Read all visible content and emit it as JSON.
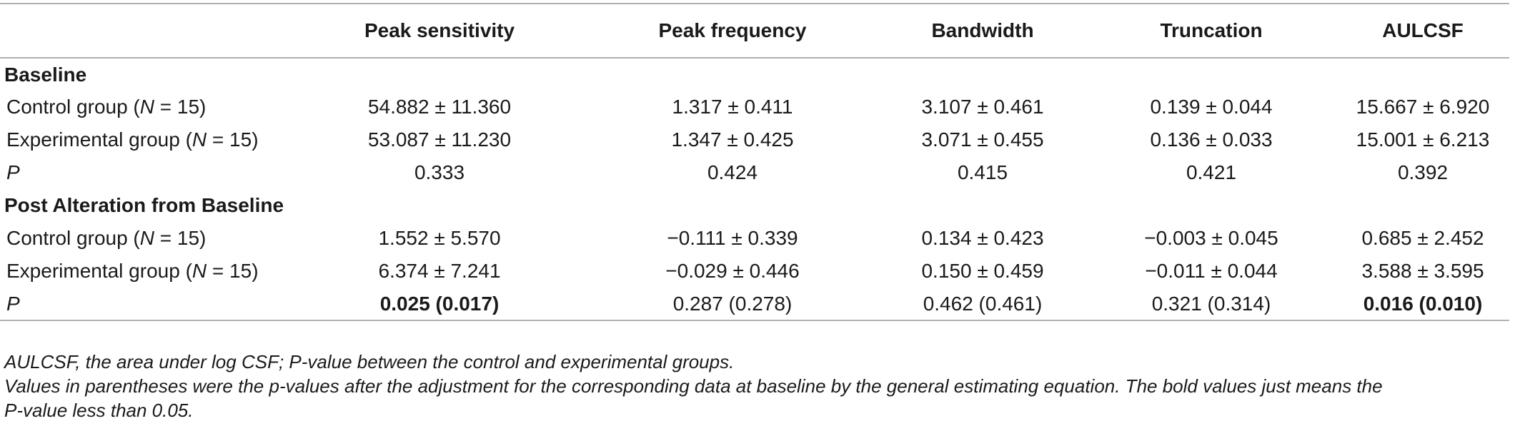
{
  "table": {
    "headers": [
      "",
      "Peak sensitivity",
      "Peak frequency",
      "Bandwidth",
      "Truncation",
      "AULCSF"
    ],
    "sections": [
      {
        "title": "Baseline",
        "rows": [
          {
            "label_pre": "Control group (",
            "label_n": "N",
            "label_post": " = 15)",
            "cells": [
              "54.882 ± 11.360",
              "1.317 ± 0.411",
              "3.107 ± 0.461",
              "0.139 ± 0.044",
              "15.667 ± 6.920"
            ]
          },
          {
            "label_pre": "Experimental group (",
            "label_n": "N",
            "label_post": " = 15)",
            "cells": [
              "53.087 ± 11.230",
              "1.347 ± 0.425",
              "3.071 ± 0.455",
              "0.136 ± 0.033",
              "15.001 ± 6.213"
            ]
          },
          {
            "label_pre": "",
            "label_n": "P",
            "label_post": "",
            "cells": [
              "0.333",
              "0.424",
              "0.415",
              "0.421",
              "0.392"
            ]
          }
        ]
      },
      {
        "title": "Post Alteration from Baseline",
        "rows": [
          {
            "label_pre": "Control group (",
            "label_n": "N",
            "label_post": " = 15)",
            "cells": [
              "1.552 ± 5.570",
              "−0.111 ± 0.339",
              "0.134 ± 0.423",
              "−0.003 ± 0.045",
              "0.685 ± 2.452"
            ]
          },
          {
            "label_pre": "Experimental group (",
            "label_n": "N",
            "label_post": " = 15)",
            "cells": [
              "6.374 ± 7.241",
              "−0.029 ± 0.446",
              "0.150 ± 0.459",
              "−0.011 ± 0.044",
              "3.588 ± 3.595"
            ]
          },
          {
            "label_pre": "",
            "label_n": "P",
            "label_post": "",
            "cells": [
              "0.025 (0.017)",
              "0.287 (0.278)",
              "0.462 (0.461)",
              "0.321 (0.314)",
              "0.016 (0.010)"
            ],
            "bold": [
              true,
              false,
              false,
              false,
              true
            ]
          }
        ]
      }
    ]
  },
  "notes": {
    "line1": "AULCSF, the area under log CSF; P-value between the control and experimental groups.",
    "line2": "Values in parentheses were the p-values after the adjustment for the corresponding data at baseline by the general estimating equation. The bold values just means the",
    "line3": "P-value less than 0.05."
  }
}
